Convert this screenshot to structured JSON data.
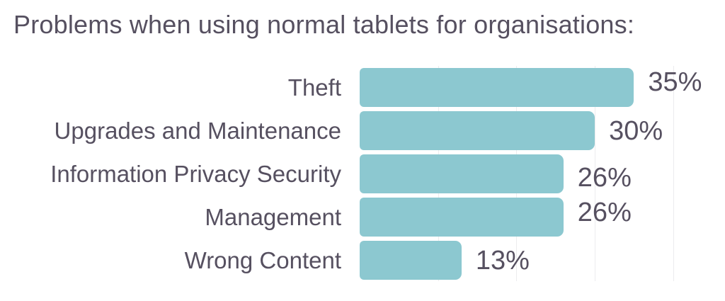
{
  "title": "Problems when using normal tablets for organisations:",
  "colors": {
    "bar": "#8cc8d0",
    "text": "#565060",
    "gridline": "#ececee",
    "background": "#ffffff"
  },
  "chart_data": {
    "type": "bar",
    "orientation": "horizontal",
    "title": "Problems when using normal tablets for organisations:",
    "categories": [
      "Theft",
      "Upgrades and Maintenance",
      "Information Privacy Security",
      "Management",
      "Wrong Content"
    ],
    "values": [
      35,
      30,
      26,
      26,
      13
    ],
    "value_labels": [
      "35%",
      "30%",
      "26%",
      "26%",
      "13%"
    ],
    "unit": "%",
    "xlim": [
      0,
      45
    ],
    "gridlines_percent": [
      10,
      20,
      30,
      40
    ],
    "legend": "none",
    "grid": "vertical-light"
  }
}
